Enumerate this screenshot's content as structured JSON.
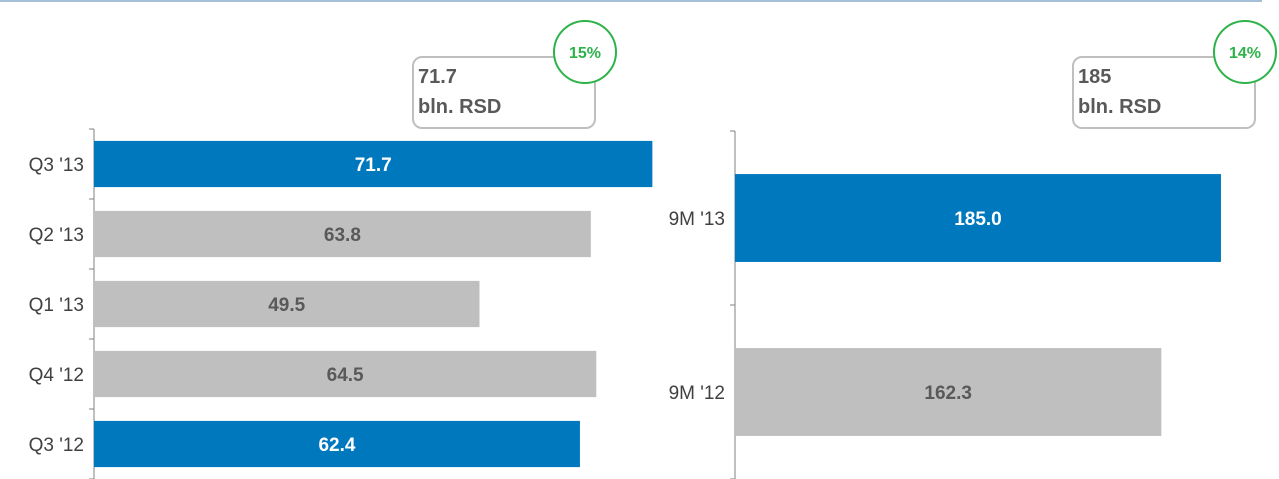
{
  "colors": {
    "highlight": "#0078BE",
    "neutral": "#BFBFBF",
    "label_on_highlight": "#FFFFFF",
    "label_on_neutral": "#595959",
    "growth": "#2DB34A",
    "top_rule": "#A5BFD8",
    "axis": "#808080"
  },
  "chart_data": [
    {
      "type": "bar",
      "orientation": "horizontal",
      "categories": [
        "Q3 '13",
        "Q2 '13",
        "Q1 '13",
        "Q4 '12",
        "Q3 '12"
      ],
      "values": [
        71.7,
        63.8,
        49.5,
        64.5,
        62.4
      ],
      "value_labels": [
        "71.7",
        "63.8",
        "49.5",
        "64.5",
        "62.4"
      ],
      "highlighted": [
        true,
        false,
        false,
        false,
        true
      ],
      "xlim": [
        0,
        80
      ],
      "callout": {
        "line1": "71.7",
        "line2": "bln. RSD"
      },
      "growth_badge": "15%"
    },
    {
      "type": "bar",
      "orientation": "horizontal",
      "categories": [
        "9M '13",
        "9M '12"
      ],
      "values": [
        185.0,
        162.3
      ],
      "value_labels": [
        "185.0",
        "162.3"
      ],
      "highlighted": [
        true,
        false
      ],
      "xlim": [
        0,
        410
      ],
      "callout": {
        "line1": "185",
        "line2": "bln. RSD"
      },
      "growth_badge": "14%"
    }
  ]
}
